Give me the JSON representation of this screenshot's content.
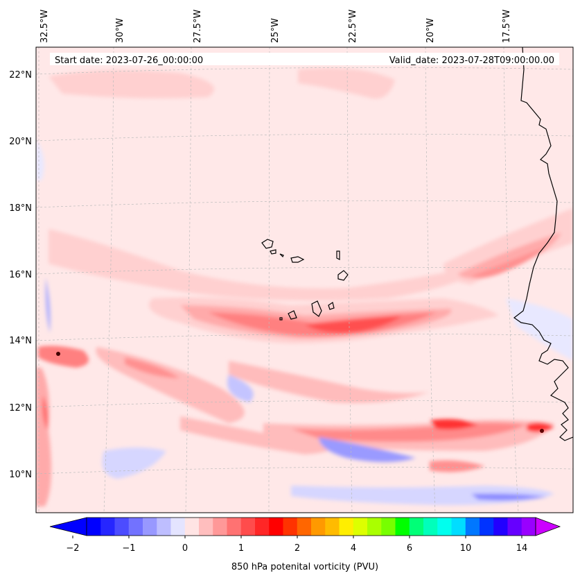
{
  "header": {
    "start_date": "Start date: 2023-07-26_00:00:00",
    "valid_date": "Valid_date: 2023-07-28T09:00:00.00"
  },
  "longitude_labels": [
    "32.5°W",
    "30°W",
    "27.5°W",
    "25°W",
    "22.5°W",
    "20°W",
    "17.5°W"
  ],
  "latitude_labels": [
    "22°N",
    "20°N",
    "18°N",
    "16°N",
    "14°N",
    "12°N",
    "10°N"
  ],
  "colorbar": {
    "label": "850 hPa potenital vorticity (PVU)",
    "tick_labels": [
      "−2",
      "−1",
      "0",
      "1",
      "2",
      "4",
      "6",
      "10",
      "14"
    ],
    "colors": [
      "#0000ff",
      "#2626ff",
      "#4c4cff",
      "#7272ff",
      "#9898ff",
      "#bebeff",
      "#e4e4ff",
      "#ffe4e4",
      "#ffbebe",
      "#ff9898",
      "#ff7272",
      "#ff4c4c",
      "#ff2626",
      "#ff0000",
      "#ff3300",
      "#ff6600",
      "#ff9900",
      "#ffbb00",
      "#ffee00",
      "#ddff00",
      "#aaff00",
      "#77ff00",
      "#00ff00",
      "#00ff77",
      "#00ffbb",
      "#00ffee",
      "#00ddff",
      "#0077ff",
      "#0033ff",
      "#2200ff",
      "#6600ff",
      "#9900ff"
    ],
    "under_color": "#0000ff",
    "over_color": "#cc00ff"
  },
  "colors": {
    "background_field": "#ffe8e8",
    "weak_positive": "#ffd0d0",
    "moderate_positive": "#ffaaaa",
    "strong_positive": "#ff7878",
    "max_positive": "#ff3030",
    "weak_negative": "#e8e8ff",
    "moderate_negative": "#b8b8ff",
    "strong_negative": "#7878ff",
    "coastline": "#000000",
    "gridline": "#bbbbbb"
  }
}
